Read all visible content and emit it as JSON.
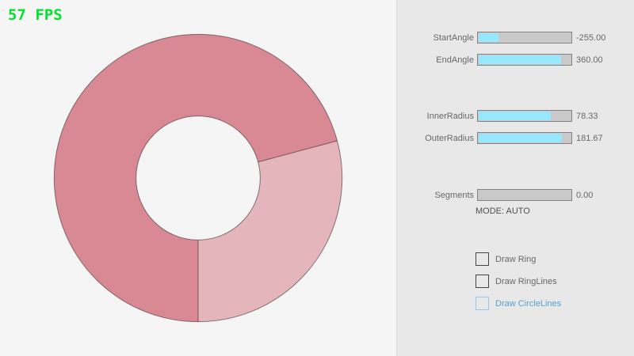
{
  "fps": {
    "text": "57 FPS"
  },
  "ring": {
    "single_pass_color": "#e5b5bc",
    "overlap_color": "#d98994",
    "outline_color": "rgba(0,0,0,0.45)"
  },
  "panel": {
    "sliders": [
      {
        "label": "StartAngle",
        "value": "-255.00",
        "fill_pct": 21.7
      },
      {
        "label": "EndAngle",
        "value": "360.00",
        "fill_pct": 90.0
      },
      {
        "label": "InnerRadius",
        "value": "78.33",
        "fill_pct": 78.3
      },
      {
        "label": "OuterRadius",
        "value": "181.67",
        "fill_pct": 90.8
      },
      {
        "label": "Segments",
        "value": "0.00",
        "fill_pct": 0
      }
    ],
    "mode_text": "MODE: AUTO",
    "checkboxes": [
      {
        "label": "Draw Ring",
        "checked": true
      },
      {
        "label": "Draw RingLines",
        "checked": true
      },
      {
        "label": "Draw CircleLines",
        "checked": false
      }
    ]
  },
  "theme": {
    "fps_green": "#00e430",
    "bg_left": "#f5f5f5",
    "bg_panel": "#e8e8e8",
    "divider": "#d8d8d8",
    "accent_fill": "#97e8ff",
    "slider_track": "#c9c9c9",
    "slider_border": "#838383",
    "text_gray": "#686868",
    "text_dark": "#505050",
    "check_border": "#454545",
    "check_fill": "#5c5c5c",
    "focus_border": "#8ecdeb",
    "focus_blue": "#55a1cf",
    "ring_overlap": "#d98994",
    "ring_single": "#e5b5bc",
    "ring_outline": "rgba(0,0,0,0.45)"
  }
}
